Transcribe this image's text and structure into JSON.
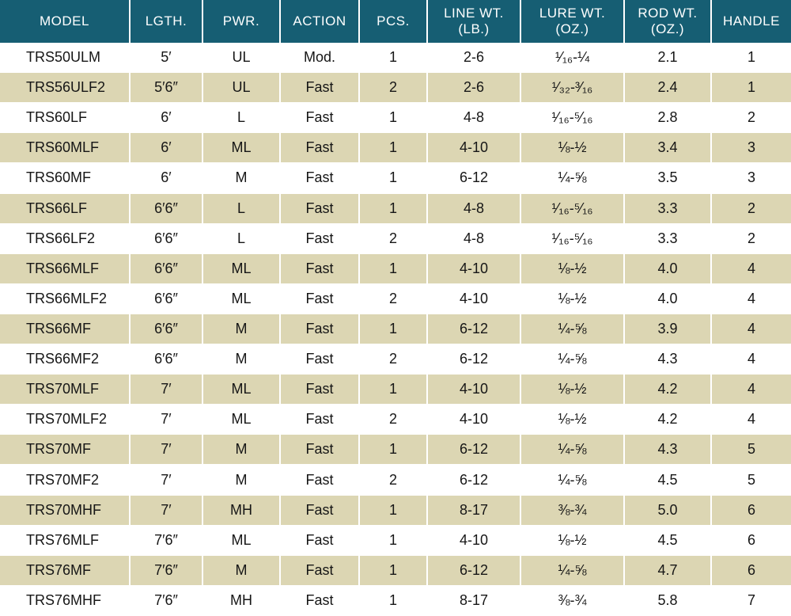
{
  "table": {
    "header": [
      [
        "MODEL"
      ],
      [
        "LGTH."
      ],
      [
        "PWR."
      ],
      [
        "ACTION"
      ],
      [
        "PCS."
      ],
      [
        "LINE WT.",
        "(LB.)"
      ],
      [
        "LURE WT.",
        "(OZ.)"
      ],
      [
        "ROD WT.",
        "(OZ.)"
      ],
      [
        "HANDLE"
      ]
    ],
    "rows": [
      [
        "TRS50ULM",
        "5′",
        "UL",
        "Mod.",
        "1",
        "2-6",
        "¹⁄₁₆-¼",
        "2.1",
        "1"
      ],
      [
        "TRS56ULF2",
        "5′6″",
        "UL",
        "Fast",
        "2",
        "2-6",
        "¹⁄₃₂-³⁄₁₆",
        "2.4",
        "1"
      ],
      [
        "TRS60LF",
        "6′",
        "L",
        "Fast",
        "1",
        "4-8",
        "¹⁄₁₆-⁵⁄₁₆",
        "2.8",
        "2"
      ],
      [
        "TRS60MLF",
        "6′",
        "ML",
        "Fast",
        "1",
        "4-10",
        "⅛-½",
        "3.4",
        "3"
      ],
      [
        "TRS60MF",
        "6′",
        "M",
        "Fast",
        "1",
        "6-12",
        "¼-⅝",
        "3.5",
        "3"
      ],
      [
        "TRS66LF",
        "6′6″",
        "L",
        "Fast",
        "1",
        "4-8",
        "¹⁄₁₆-⁵⁄₁₆",
        "3.3",
        "2"
      ],
      [
        "TRS66LF2",
        "6′6″",
        "L",
        "Fast",
        "2",
        "4-8",
        "¹⁄₁₆-⁵⁄₁₆",
        "3.3",
        "2"
      ],
      [
        "TRS66MLF",
        "6′6″",
        "ML",
        "Fast",
        "1",
        "4-10",
        "⅛-½",
        "4.0",
        "4"
      ],
      [
        "TRS66MLF2",
        "6′6″",
        "ML",
        "Fast",
        "2",
        "4-10",
        "⅛-½",
        "4.0",
        "4"
      ],
      [
        "TRS66MF",
        "6′6″",
        "M",
        "Fast",
        "1",
        "6-12",
        "¼-⅝",
        "3.9",
        "4"
      ],
      [
        "TRS66MF2",
        "6′6″",
        "M",
        "Fast",
        "2",
        "6-12",
        "¼-⅝",
        "4.3",
        "4"
      ],
      [
        "TRS70MLF",
        "7′",
        "ML",
        "Fast",
        "1",
        "4-10",
        "⅛-½",
        "4.2",
        "4"
      ],
      [
        "TRS70MLF2",
        "7′",
        "ML",
        "Fast",
        "2",
        "4-10",
        "⅛-½",
        "4.2",
        "4"
      ],
      [
        "TRS70MF",
        "7′",
        "M",
        "Fast",
        "1",
        "6-12",
        "¼-⅝",
        "4.3",
        "5"
      ],
      [
        "TRS70MF2",
        "7′",
        "M",
        "Fast",
        "2",
        "6-12",
        "¼-⅝",
        "4.5",
        "5"
      ],
      [
        "TRS70MHF",
        "7′",
        "MH",
        "Fast",
        "1",
        "8-17",
        "⅜-¾",
        "5.0",
        "6"
      ],
      [
        "TRS76MLF",
        "7′6″",
        "ML",
        "Fast",
        "1",
        "4-10",
        "⅛-½",
        "4.5",
        "6"
      ],
      [
        "TRS76MF",
        "7′6″",
        "M",
        "Fast",
        "1",
        "6-12",
        "¼-⅝",
        "4.7",
        "6"
      ],
      [
        "TRS76MHF",
        "7′6″",
        "MH",
        "Fast",
        "1",
        "8-17",
        "⅜-¾",
        "5.8",
        "7"
      ]
    ]
  }
}
